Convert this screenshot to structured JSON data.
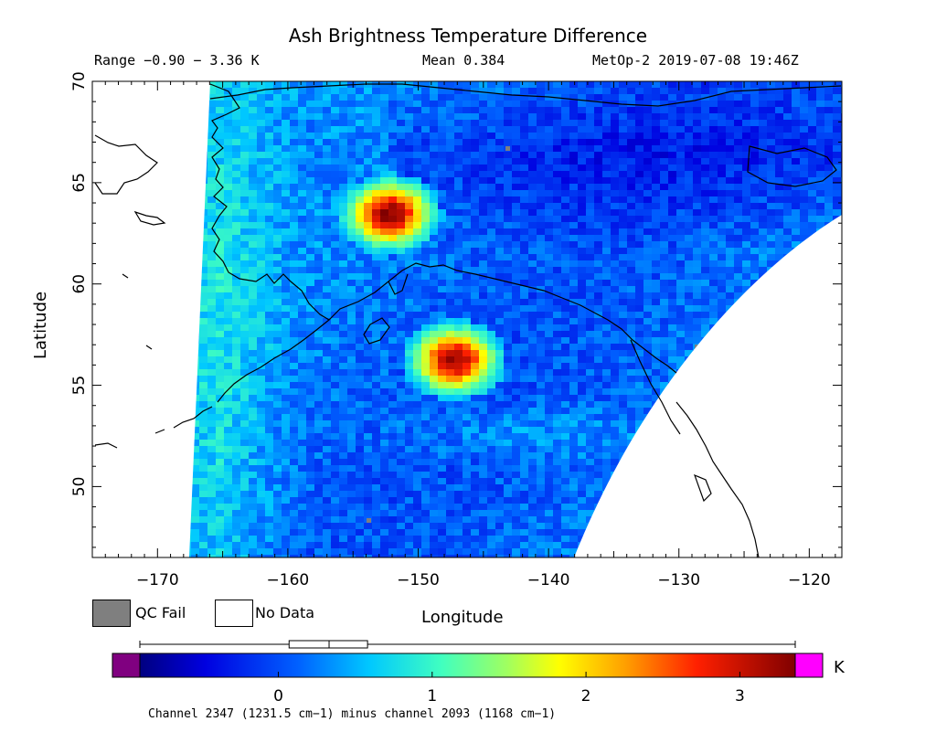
{
  "title": "Ash Brightness Temperature Difference",
  "header": {
    "range": "Range −0.90 − 3.36 K",
    "mean": "Mean 0.384",
    "satellite_time": "MetOp-2 2019-07-08 19:46Z"
  },
  "axes": {
    "x_label": "Longitude",
    "y_label": "Latitude",
    "x_ticks": [
      -170,
      -160,
      -150,
      -140,
      -130,
      -120
    ],
    "y_ticks": [
      50,
      55,
      60,
      65,
      70
    ],
    "lon_range": [
      -175,
      -117.5
    ],
    "lat_range": [
      46.5,
      70
    ]
  },
  "legend": {
    "qc_fail": "QC Fail",
    "no_data": "No Data",
    "qc_fail_color": "#7f7f7f",
    "no_data_color": "#ffffff"
  },
  "colorbar": {
    "unit": "K",
    "ticks": [
      0,
      1,
      2,
      3
    ],
    "range": [
      -0.9,
      3.36
    ],
    "under_color": "#800080",
    "over_color": "#ff00ff",
    "box_whisker": {
      "min": -0.9,
      "q1": 0.07,
      "median": 0.33,
      "q3": 0.58,
      "max": 3.36
    }
  },
  "channel_note": "Channel 2347 (1231.5 cm−1) minus channel 2093 (1168 cm−1)",
  "features": {
    "hotspots": [
      {
        "lon": -152.5,
        "lat": 63.6,
        "peak_k": 3.3
      },
      {
        "lon": -147.5,
        "lat": 56.4,
        "peak_k": 3.2
      }
    ]
  }
}
